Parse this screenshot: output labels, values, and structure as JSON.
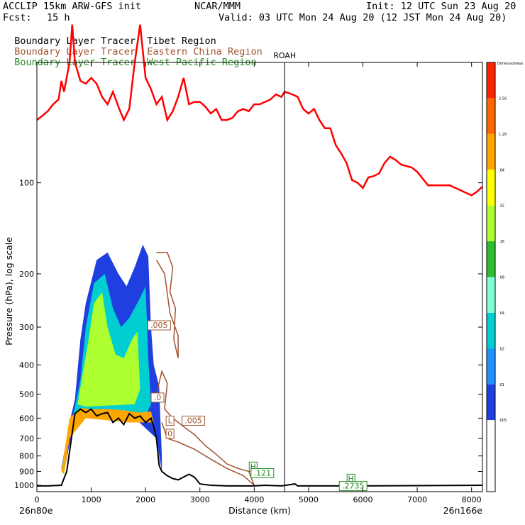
{
  "header": {
    "model": "ACCLIP 15km ARW-GFS init",
    "org": "NCAR/MMM",
    "init": "Init: 12 UTC Sun 23 Aug 20",
    "fcst_label": "Fcst:",
    "fcst_value": "15 h",
    "valid": "Valid: 03 UTC Mon 24 Aug 20 (12 JST Mon 24 Aug 20)"
  },
  "legend": [
    {
      "name": "Boundary Layer Tracer",
      "region": "Tibet Region",
      "color": "#000000"
    },
    {
      "name": "Boundary Layer Tracer",
      "region": "Eastern China Region",
      "color": "#a0522d"
    },
    {
      "name": "Boundary Layer Tracer",
      "region": "West Pacific Region",
      "color": "#228b22"
    }
  ],
  "chart_data": {
    "type": "cross-section",
    "xlabel": "Distance (km)",
    "ylabel": "Pressure (hPa), log scale",
    "xlim": [
      0,
      8200
    ],
    "ylim": [
      1050,
      40
    ],
    "y_scale": "log",
    "x_ticks": [
      0,
      1000,
      2000,
      3000,
      4000,
      5000,
      6000,
      7000,
      8000
    ],
    "y_ticks": [
      100,
      200,
      300,
      400,
      500,
      600,
      700,
      800,
      900,
      1000
    ],
    "left_endpoint": "26n80e",
    "right_endpoint": "26n166e",
    "marker": {
      "label": "ROAH",
      "x": 4560
    },
    "tropopause": {
      "color": "#ff0000",
      "points": [
        [
          0,
          62
        ],
        [
          100,
          60
        ],
        [
          200,
          58
        ],
        [
          300,
          55
        ],
        [
          400,
          53
        ],
        [
          450,
          46
        ],
        [
          500,
          50
        ],
        [
          600,
          40
        ],
        [
          650,
          30
        ],
        [
          700,
          40
        ],
        [
          800,
          46
        ],
        [
          900,
          47
        ],
        [
          1000,
          45
        ],
        [
          1100,
          47
        ],
        [
          1200,
          52
        ],
        [
          1300,
          55
        ],
        [
          1400,
          50
        ],
        [
          1500,
          56
        ],
        [
          1600,
          62
        ],
        [
          1700,
          57
        ],
        [
          1800,
          40
        ],
        [
          1900,
          30
        ],
        [
          2000,
          45
        ],
        [
          2100,
          49
        ],
        [
          2200,
          55
        ],
        [
          2300,
          52
        ],
        [
          2400,
          62
        ],
        [
          2500,
          58
        ],
        [
          2600,
          52
        ],
        [
          2700,
          45
        ],
        [
          2800,
          55
        ],
        [
          2900,
          54
        ],
        [
          3000,
          54
        ],
        [
          3100,
          56
        ],
        [
          3200,
          59
        ],
        [
          3300,
          57
        ],
        [
          3400,
          62
        ],
        [
          3500,
          62
        ],
        [
          3600,
          61
        ],
        [
          3700,
          58
        ],
        [
          3800,
          57
        ],
        [
          3900,
          58
        ],
        [
          4000,
          55
        ],
        [
          4100,
          55
        ],
        [
          4200,
          54
        ],
        [
          4300,
          53
        ],
        [
          4400,
          51
        ],
        [
          4500,
          52
        ],
        [
          4560,
          50
        ],
        [
          4700,
          51
        ],
        [
          4800,
          52
        ],
        [
          4900,
          57
        ],
        [
          5000,
          59
        ],
        [
          5100,
          57
        ],
        [
          5200,
          62
        ],
        [
          5300,
          66
        ],
        [
          5400,
          66
        ],
        [
          5500,
          75
        ],
        [
          5600,
          80
        ],
        [
          5700,
          86
        ],
        [
          5800,
          98
        ],
        [
          5900,
          100
        ],
        [
          6000,
          104
        ],
        [
          6100,
          96
        ],
        [
          6200,
          95
        ],
        [
          6300,
          93
        ],
        [
          6400,
          86
        ],
        [
          6500,
          82
        ],
        [
          6600,
          84
        ],
        [
          6700,
          87
        ],
        [
          6800,
          88
        ],
        [
          6900,
          89
        ],
        [
          7000,
          92
        ],
        [
          7200,
          102
        ],
        [
          7400,
          102
        ],
        [
          7600,
          102
        ],
        [
          7800,
          106
        ],
        [
          7900,
          108
        ],
        [
          8000,
          110
        ],
        [
          8100,
          107
        ],
        [
          8200,
          103
        ]
      ]
    },
    "terrain": {
      "color": "#000000",
      "points": [
        [
          0,
          1005
        ],
        [
          200,
          1005
        ],
        [
          450,
          1000
        ],
        [
          550,
          900
        ],
        [
          700,
          580
        ],
        [
          800,
          560
        ],
        [
          900,
          575
        ],
        [
          1000,
          560
        ],
        [
          1100,
          590
        ],
        [
          1200,
          580
        ],
        [
          1300,
          575
        ],
        [
          1400,
          620
        ],
        [
          1500,
          600
        ],
        [
          1600,
          630
        ],
        [
          1700,
          580
        ],
        [
          1800,
          600
        ],
        [
          1900,
          590
        ],
        [
          2000,
          620
        ],
        [
          2100,
          600
        ],
        [
          2150,
          640
        ],
        [
          2200,
          700
        ],
        [
          2250,
          860
        ],
        [
          2300,
          900
        ],
        [
          2400,
          930
        ],
        [
          2500,
          950
        ],
        [
          2600,
          960
        ],
        [
          2800,
          920
        ],
        [
          2900,
          940
        ],
        [
          3000,
          990
        ],
        [
          3200,
          1000
        ],
        [
          3500,
          1005
        ],
        [
          4000,
          1005
        ],
        [
          4200,
          1000
        ],
        [
          4500,
          1005
        ],
        [
          4750,
          990
        ],
        [
          4800,
          1005
        ],
        [
          5000,
          1005
        ],
        [
          6000,
          1005
        ],
        [
          7000,
          1003
        ],
        [
          8200,
          1000
        ]
      ]
    },
    "contour_labels": [
      {
        "text": ".005",
        "x": 2250,
        "y": 300,
        "color": "#a0522d"
      },
      {
        "text": ".0",
        "x": 2220,
        "y": 520,
        "color": "#a0522d"
      },
      {
        "text": "L",
        "x": 2450,
        "y": 620,
        "color": "#a0522d"
      },
      {
        "text": "0",
        "x": 2450,
        "y": 685,
        "color": "#a0522d"
      },
      {
        "text": ".005",
        "x": 2880,
        "y": 620,
        "color": "#a0522d"
      },
      {
        "text": "H",
        "x": 3980,
        "y": 880,
        "color": "#228b22"
      },
      {
        "text": ".121",
        "x": 4150,
        "y": 925,
        "color": "#228b22"
      },
      {
        "text": "H",
        "x": 5780,
        "y": 965,
        "color": "#228b22"
      },
      {
        "text": ".2735",
        "x": 5820,
        "y": 1020,
        "color": "#228b22"
      }
    ],
    "colorbar": {
      "title": "Dimensionless",
      "levels": [
        ".005",
        ".01",
        ".02",
        ".04",
        ".08",
        ".16",
        ".32",
        ".64",
        "1.28",
        "2.56"
      ],
      "colors": [
        "#ffffff",
        "#ffffff",
        "#1f3fe0",
        "#1e90ff",
        "#00ced1",
        "#7fffd4",
        "#2ebd2e",
        "#adff2f",
        "#ffff00",
        "#ffa500",
        "#ff6600",
        "#ff2200"
      ]
    }
  }
}
